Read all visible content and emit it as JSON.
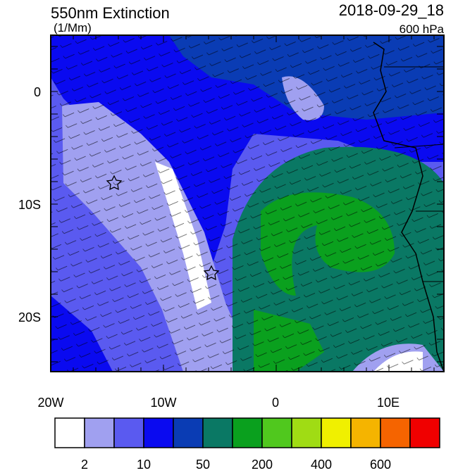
{
  "title": "550nm Extinction",
  "units": "(1/Mm)",
  "date": "2018-09-29_18",
  "level": "600 hPa",
  "map": {
    "lat_labels": [
      "0",
      "10S",
      "20S"
    ],
    "lon_labels": [
      "20W",
      "10W",
      "0",
      "10E"
    ]
  },
  "colorbar": {
    "colors": [
      "#ffffff",
      "#a0a0f0",
      "#5a5af0",
      "#0a0af0",
      "#0a3cb4",
      "#0a7864",
      "#0aa01e",
      "#50c81e",
      "#a0dc14",
      "#f0f000",
      "#f5b400",
      "#f56400",
      "#f00000"
    ],
    "labels": [
      "2",
      "10",
      "50",
      "200",
      "400",
      "600"
    ]
  }
}
